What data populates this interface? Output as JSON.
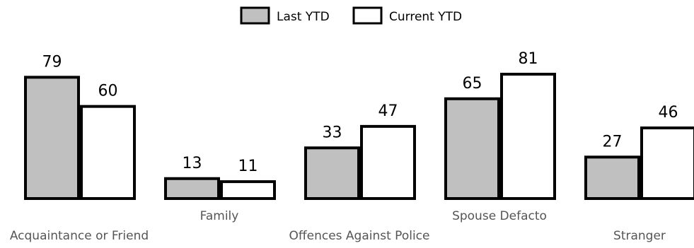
{
  "chart_data": {
    "type": "bar",
    "categories": [
      "Acquaintance or Friend",
      "Family",
      "Offences Against Police",
      "Spouse Defacto",
      "Stranger"
    ],
    "series": [
      {
        "name": "Last YTD",
        "values": [
          79,
          13,
          33,
          65,
          27
        ],
        "color": "#c0c0c0"
      },
      {
        "name": "Current YTD",
        "values": [
          60,
          11,
          47,
          81,
          46
        ],
        "color": "#ffffff"
      }
    ],
    "title": "",
    "xlabel": "",
    "ylabel": "",
    "ylim": [
      0,
      81
    ],
    "grid": false,
    "legend_position": "top-center",
    "data_labels": true,
    "bar_stroke_color": "#000000"
  }
}
